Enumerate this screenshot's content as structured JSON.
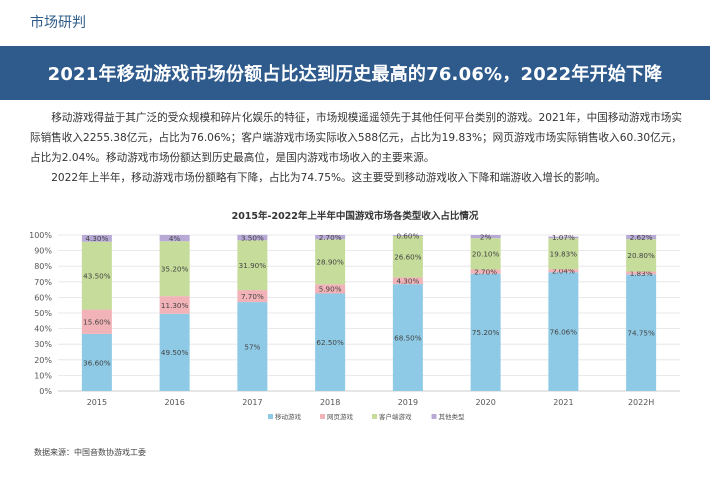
{
  "section_label": "市场研判",
  "banner_title": "2021年移动游戏市场份额占比达到历史最高的76.06%，2022年开始下降",
  "paragraphs": [
    "移动游戏得益于其广泛的受众规模和碎片化娱乐的特征，市场规模遥遥领先于其他任何平台类别的游戏。2021年，中国移动游戏市场实际销售收入2255.38亿元，占比为76.06%；客户端游戏市场实际收入588亿元，占比为19.83%；网页游戏市场实际销售收入60.30亿元，占比为2.04%。移动游戏市场份额达到历史最高位，是国内游戏市场收入的主要来源。",
    "2022年上半年，移动游戏市场份额略有下降，占比为74.75%。这主要受到移动游戏收入下降和端游收入增长的影响。"
  ],
  "source_note": "数据来源：中国音数协游戏工委",
  "chart_data": {
    "type": "bar",
    "stacked": true,
    "title": "2015年-2022年上半年中国游戏市场各类型收入占比情况",
    "categories": [
      "2015",
      "2016",
      "2017",
      "2018",
      "2019",
      "2020",
      "2021",
      "2022H"
    ],
    "y_ticks": [
      "0%",
      "10%",
      "20%",
      "30%",
      "40%",
      "50%",
      "60%",
      "70%",
      "80%",
      "90%",
      "100%"
    ],
    "ylim": [
      0,
      100
    ],
    "grid": true,
    "legend_position": "bottom",
    "series": [
      {
        "name": "移动游戏",
        "color": "#8ecae6",
        "values": [
          36.6,
          49.5,
          57,
          62.5,
          68.5,
          75.2,
          76.06,
          74.75
        ],
        "labels": [
          "36.60%",
          "49.50%",
          "57%",
          "62.50%",
          "68.50%",
          "75.20%",
          "76.06%",
          "74.75%"
        ]
      },
      {
        "name": "网页游戏",
        "color": "#f2b3b8",
        "values": [
          15.6,
          11.3,
          7.7,
          5.9,
          4.3,
          2.7,
          2.04,
          1.83
        ],
        "labels": [
          "15.60%",
          "11.30%",
          "7.70%",
          "5.90%",
          "4.30%",
          "2.70%",
          "2.04%",
          "1.83%"
        ]
      },
      {
        "name": "客户端游戏",
        "color": "#c6dc9a",
        "values": [
          43.5,
          35.2,
          31.9,
          28.9,
          26.6,
          20.1,
          19.83,
          20.8
        ],
        "labels": [
          "43.50%",
          "35.20%",
          "31.90%",
          "28.90%",
          "26.60%",
          "20.10%",
          "19.83%",
          "20.80%"
        ]
      },
      {
        "name": "其他类型",
        "color": "#b8a9d6",
        "values": [
          4.3,
          4,
          3.5,
          2.7,
          0.6,
          2,
          1.07,
          2.62
        ],
        "labels": [
          "4.30%",
          "4%",
          "3.50%",
          "2.70%",
          "0.60%",
          "2%",
          "1.07%",
          "2.62%"
        ]
      }
    ]
  }
}
